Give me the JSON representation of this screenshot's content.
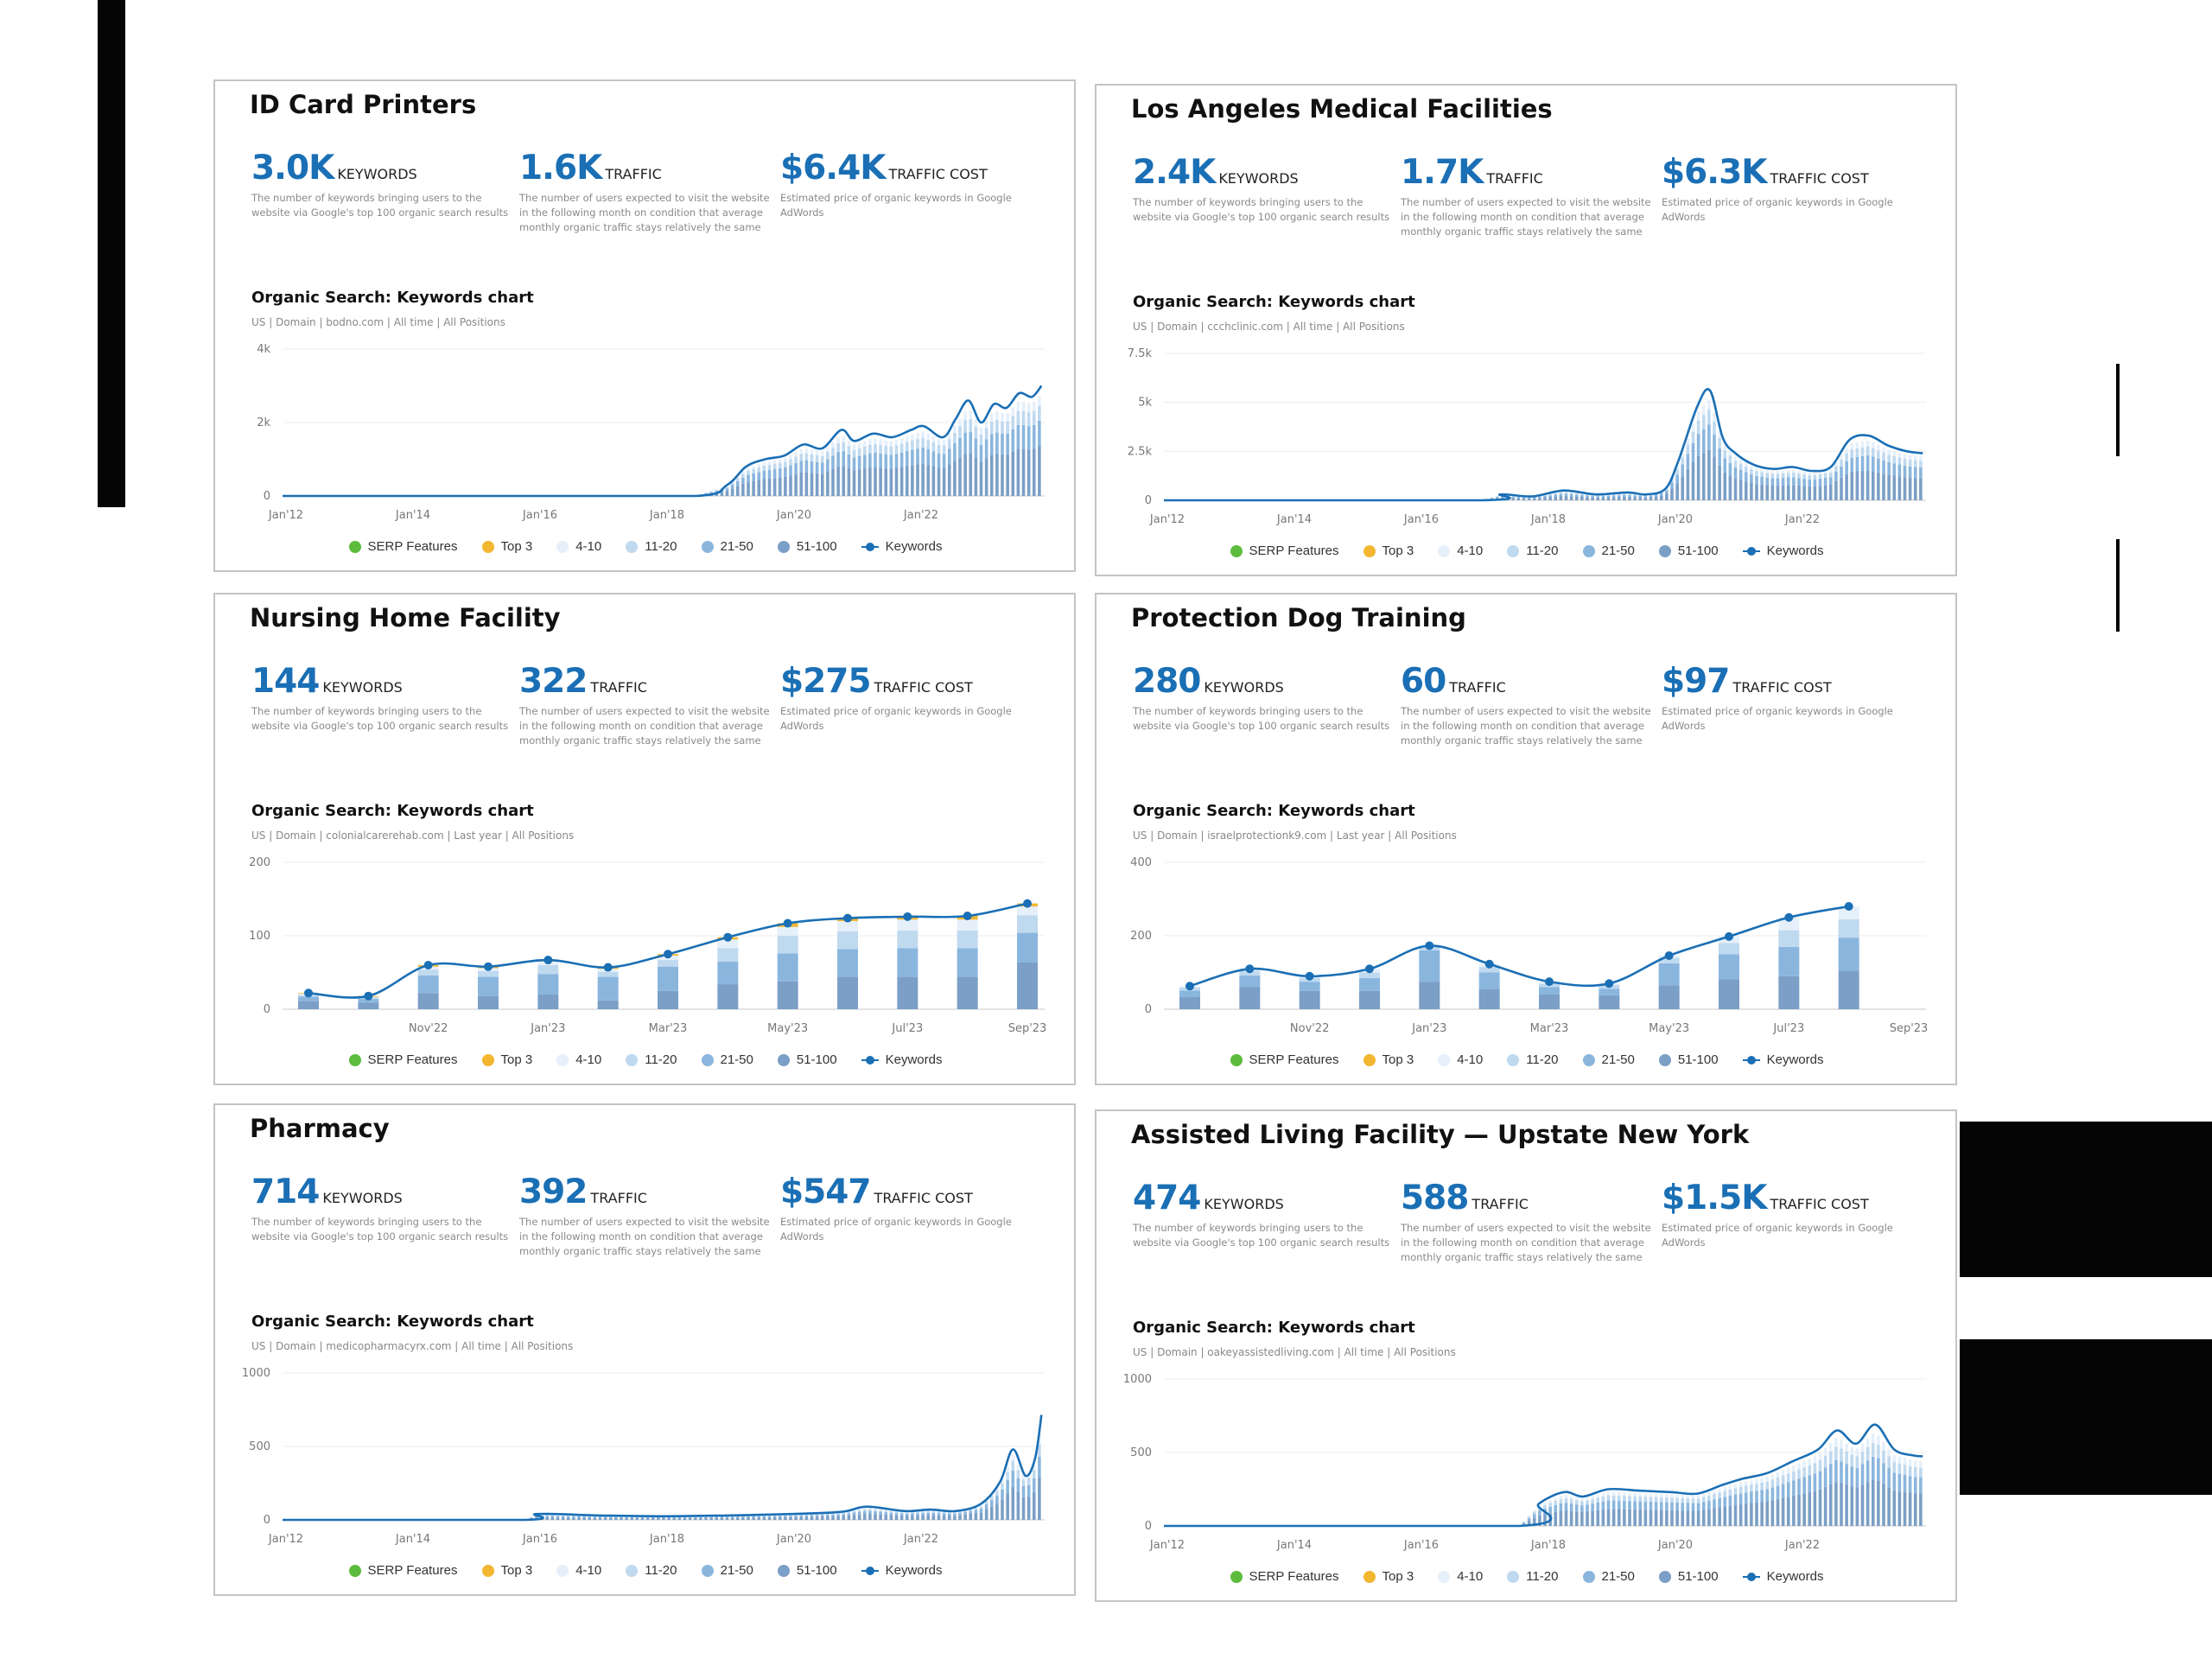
{
  "colors": {
    "accent": "#1a6fb5",
    "serp": "#5dbb3d",
    "top3": "#f2b630",
    "pos4_10": "#e6f0fa",
    "pos11_20": "#bfd9ef",
    "pos21_50": "#8ab6de",
    "pos51_100": "#7b9fc6"
  },
  "legend": [
    "SERP Features",
    "Top 3",
    "4-10",
    "11-20",
    "21-50",
    "51-100",
    "Keywords"
  ],
  "panels": [
    {
      "title": "ID Card Printers",
      "metrics": {
        "keywords": {
          "value": "3.0K",
          "label": "KEYWORDS",
          "desc": "The number of keywords bringing users to the website via Google's top 100 organic search results"
        },
        "traffic": {
          "value": "1.6K",
          "label": "TRAFFIC",
          "desc": "The number of users expected to visit the website in the following month on condition that average monthly organic traffic stays relatively the same"
        },
        "cost": {
          "value": "$6.4K",
          "label": "TRAFFIC COST",
          "desc": "Estimated price of organic keywords in Google AdWords"
        }
      },
      "chart_title": "Organic Search: Keywords chart",
      "chart_sub": "US | Domain | bodno.com | All time | All Positions"
    },
    {
      "title": "Los Angeles Medical Facilities",
      "metrics": {
        "keywords": {
          "value": "2.4K",
          "label": "KEYWORDS",
          "desc": "The number of keywords bringing users to the website via Google's top 100 organic search results"
        },
        "traffic": {
          "value": "1.7K",
          "label": "TRAFFIC",
          "desc": "The number of users expected to visit the website in the following month on condition that average monthly organic traffic stays relatively the same"
        },
        "cost": {
          "value": "$6.3K",
          "label": "TRAFFIC COST",
          "desc": "Estimated price of organic keywords in Google AdWords"
        }
      },
      "chart_title": "Organic Search: Keywords chart",
      "chart_sub": "US | Domain | ccchclinic.com | All time | All Positions"
    },
    {
      "title": "Nursing Home Facility",
      "metrics": {
        "keywords": {
          "value": "144",
          "label": "KEYWORDS",
          "desc": "The number of keywords bringing users to the website via Google's top 100 organic search results"
        },
        "traffic": {
          "value": "322",
          "label": "TRAFFIC",
          "desc": "The number of users expected to visit the website in the following month on condition that average monthly organic traffic stays relatively the same"
        },
        "cost": {
          "value": "$275",
          "label": "TRAFFIC COST",
          "desc": "Estimated price of organic keywords in Google AdWords"
        }
      },
      "chart_title": "Organic Search: Keywords chart",
      "chart_sub": "US | Domain | colonialcarerehab.com | Last year | All Positions"
    },
    {
      "title": "Protection Dog Training",
      "metrics": {
        "keywords": {
          "value": "280",
          "label": "KEYWORDS",
          "desc": "The number of keywords bringing users to the website via Google's top 100 organic search results"
        },
        "traffic": {
          "value": "60",
          "label": "TRAFFIC",
          "desc": "The number of users expected to visit the website in the following month on condition that average monthly organic traffic stays relatively the same"
        },
        "cost": {
          "value": "$97",
          "label": "TRAFFIC COST",
          "desc": "Estimated price of organic keywords in Google AdWords"
        }
      },
      "chart_title": "Organic Search: Keywords chart",
      "chart_sub": "US | Domain | israelprotectionk9.com | Last year | All Positions"
    },
    {
      "title": "Pharmacy",
      "metrics": {
        "keywords": {
          "value": "714",
          "label": "KEYWORDS",
          "desc": "The number of keywords bringing users to the website via Google's top 100 organic search results"
        },
        "traffic": {
          "value": "392",
          "label": "TRAFFIC",
          "desc": "The number of users expected to visit the website in the following month on condition that average monthly organic traffic stays relatively the same"
        },
        "cost": {
          "value": "$547",
          "label": "TRAFFIC COST",
          "desc": "Estimated price of organic keywords in Google AdWords"
        }
      },
      "chart_title": "Organic Search: Keywords chart",
      "chart_sub": "US | Domain | medicopharmacyrx.com | All time | All Positions"
    },
    {
      "title": "Assisted Living Facility — Upstate New York",
      "metrics": {
        "keywords": {
          "value": "474",
          "label": "KEYWORDS",
          "desc": "The number of keywords bringing users to the website via Google's top 100 organic search results"
        },
        "traffic": {
          "value": "588",
          "label": "TRAFFIC",
          "desc": "The number of users expected to visit the website in the following month on condition that average monthly organic traffic stays relatively the same"
        },
        "cost": {
          "value": "$1.5K",
          "label": "TRAFFIC COST",
          "desc": "Estimated price of organic keywords in Google AdWords"
        }
      },
      "chart_title": "Organic Search: Keywords chart",
      "chart_sub": "US | Domain | oakeyassistedliving.com | All time | All Positions"
    }
  ],
  "chart_data": [
    {
      "type": "line",
      "kind": "alltime",
      "x_ticks": [
        "Jan'12",
        "Jan'14",
        "Jan'16",
        "Jan'18",
        "Jan'20",
        "Jan'22"
      ],
      "y_ticks": [
        "0",
        "2k",
        "4k"
      ],
      "ylim": [
        0,
        4000
      ],
      "x_range": [
        2012.0,
        2024.0
      ],
      "x": [
        2012.0,
        2016.0,
        2018.5,
        2019.0,
        2019.3,
        2019.6,
        2019.9,
        2020.2,
        2020.5,
        2020.8,
        2021.0,
        2021.3,
        2021.6,
        2021.9,
        2022.1,
        2022.4,
        2022.6,
        2022.8,
        2023.0,
        2023.2,
        2023.4,
        2023.6,
        2023.8,
        2023.95
      ],
      "series": [
        {
          "name": "Keywords",
          "values": [
            0,
            0,
            0,
            300,
            800,
            1000,
            1100,
            1400,
            1300,
            1800,
            1500,
            1700,
            1600,
            1800,
            1900,
            1600,
            2100,
            2600,
            2000,
            2500,
            2400,
            2800,
            2700,
            3000
          ]
        }
      ]
    },
    {
      "type": "line",
      "kind": "alltime",
      "x_ticks": [
        "Jan'12",
        "Jan'14",
        "Jan'16",
        "Jan'18",
        "Jan'20",
        "Jan'22"
      ],
      "y_ticks": [
        "0",
        "2.5k",
        "5k",
        "7.5k"
      ],
      "ylim": [
        0,
        7500
      ],
      "x_range": [
        2012.0,
        2024.0
      ],
      "x": [
        2012.0,
        2017.0,
        2017.3,
        2017.8,
        2018.3,
        2018.8,
        2019.3,
        2019.6,
        2019.9,
        2020.1,
        2020.4,
        2020.6,
        2020.8,
        2021.0,
        2021.3,
        2021.6,
        2021.9,
        2022.2,
        2022.5,
        2022.8,
        2023.1,
        2023.4,
        2023.7,
        2023.95
      ],
      "series": [
        {
          "name": "Keywords",
          "values": [
            0,
            0,
            300,
            200,
            500,
            300,
            400,
            300,
            600,
            2000,
            4800,
            5600,
            3200,
            2400,
            1800,
            1600,
            1700,
            1500,
            1700,
            3100,
            3300,
            2800,
            2500,
            2400
          ]
        }
      ]
    },
    {
      "type": "bar",
      "kind": "monthly",
      "categories": [
        "Sep'22",
        "Oct'22",
        "Nov'22",
        "Dec'22",
        "Jan'23",
        "Feb'23",
        "Mar'23",
        "Apr'23",
        "May'23",
        "Jun'23",
        "Jul'23",
        "Aug'23",
        "Sep'23"
      ],
      "x_ticks": [
        "Nov'22",
        "Jan'23",
        "Mar'23",
        "May'23",
        "Jul'23",
        "Sep'23"
      ],
      "y_ticks": [
        "0",
        "100",
        "200"
      ],
      "ylim": [
        0,
        200
      ],
      "series": [
        {
          "name": "Keywords",
          "values": [
            22,
            18,
            60,
            58,
            67,
            57,
            75,
            98,
            117,
            124,
            126,
            127,
            144
          ]
        },
        {
          "name": "51-100",
          "values": [
            11,
            9,
            22,
            18,
            20,
            12,
            25,
            34,
            38,
            44,
            44,
            44,
            64
          ]
        },
        {
          "name": "21-50",
          "values": [
            6,
            5,
            24,
            26,
            28,
            32,
            33,
            31,
            38,
            38,
            39,
            39,
            40
          ]
        },
        {
          "name": "11-20",
          "values": [
            2,
            2,
            8,
            8,
            12,
            7,
            9,
            18,
            24,
            24,
            24,
            24,
            24
          ]
        },
        {
          "name": "4-10",
          "values": [
            2,
            1,
            4,
            4,
            5,
            4,
            6,
            12,
            12,
            14,
            15,
            15,
            12
          ]
        },
        {
          "name": "Top 3",
          "values": [
            1,
            1,
            2,
            2,
            2,
            2,
            2,
            3,
            5,
            4,
            4,
            5,
            4
          ]
        }
      ]
    },
    {
      "type": "bar",
      "kind": "monthly",
      "categories": [
        "Sep'22",
        "Oct'22",
        "Nov'22",
        "Dec'22",
        "Jan'23",
        "Feb'23",
        "Mar'23",
        "Apr'23",
        "May'23",
        "Jun'23",
        "Jul'23",
        "Aug'23",
        "Sep'23"
      ],
      "x_ticks": [
        "Nov'22",
        "Jan'23",
        "Mar'23",
        "May'23",
        "Jul'23",
        "Sep'23"
      ],
      "y_ticks": [
        "0",
        "200",
        "400"
      ],
      "ylim": [
        0,
        400
      ],
      "series": [
        {
          "name": "Keywords",
          "values": [
            63,
            110,
            90,
            110,
            173,
            123,
            75,
            70,
            146,
            198,
            250,
            280,
            0
          ]
        },
        {
          "name": "51-100",
          "values": [
            33,
            60,
            50,
            50,
            75,
            55,
            40,
            38,
            65,
            82,
            90,
            105,
            0
          ]
        },
        {
          "name": "21-50",
          "values": [
            18,
            32,
            25,
            35,
            85,
            45,
            20,
            18,
            60,
            68,
            80,
            90,
            0
          ]
        },
        {
          "name": "11-20",
          "values": [
            8,
            12,
            10,
            15,
            10,
            15,
            10,
            10,
            15,
            30,
            45,
            50,
            0
          ]
        },
        {
          "name": "4-10",
          "values": [
            4,
            6,
            5,
            10,
            3,
            8,
            5,
            4,
            6,
            18,
            35,
            35,
            0
          ]
        }
      ]
    },
    {
      "type": "line",
      "kind": "alltime",
      "x_ticks": [
        "Jan'12",
        "Jan'14",
        "Jan'16",
        "Jan'18",
        "Jan'20",
        "Jan'22"
      ],
      "y_ticks": [
        "0",
        "500",
        "1000"
      ],
      "ylim": [
        0,
        1000
      ],
      "x_range": [
        2012.0,
        2024.0
      ],
      "x": [
        2012.0,
        2015.8,
        2016.0,
        2017.0,
        2018.0,
        2019.0,
        2020.0,
        2020.8,
        2021.2,
        2021.8,
        2022.2,
        2022.6,
        2023.0,
        2023.3,
        2023.5,
        2023.7,
        2023.85,
        2023.95
      ],
      "series": [
        {
          "name": "Keywords",
          "values": [
            0,
            0,
            40,
            30,
            25,
            30,
            40,
            55,
            90,
            60,
            70,
            60,
            110,
            260,
            480,
            300,
            420,
            714
          ]
        }
      ]
    },
    {
      "type": "line",
      "kind": "alltime",
      "x_ticks": [
        "Jan'12",
        "Jan'14",
        "Jan'16",
        "Jan'18",
        "Jan'20",
        "Jan'22"
      ],
      "y_ticks": [
        "0",
        "500",
        "1000"
      ],
      "ylim": [
        0,
        1000
      ],
      "x_range": [
        2012.0,
        2024.0
      ],
      "x": [
        2012.0,
        2017.6,
        2017.9,
        2018.3,
        2018.6,
        2019.0,
        2019.5,
        2020.0,
        2020.4,
        2020.8,
        2021.1,
        2021.5,
        2021.9,
        2022.3,
        2022.6,
        2022.9,
        2023.2,
        2023.5,
        2023.8,
        2023.95
      ],
      "series": [
        {
          "name": "Keywords",
          "values": [
            0,
            0,
            150,
            230,
            200,
            250,
            240,
            230,
            220,
            280,
            320,
            360,
            440,
            520,
            650,
            560,
            690,
            520,
            480,
            474
          ]
        }
      ]
    }
  ]
}
